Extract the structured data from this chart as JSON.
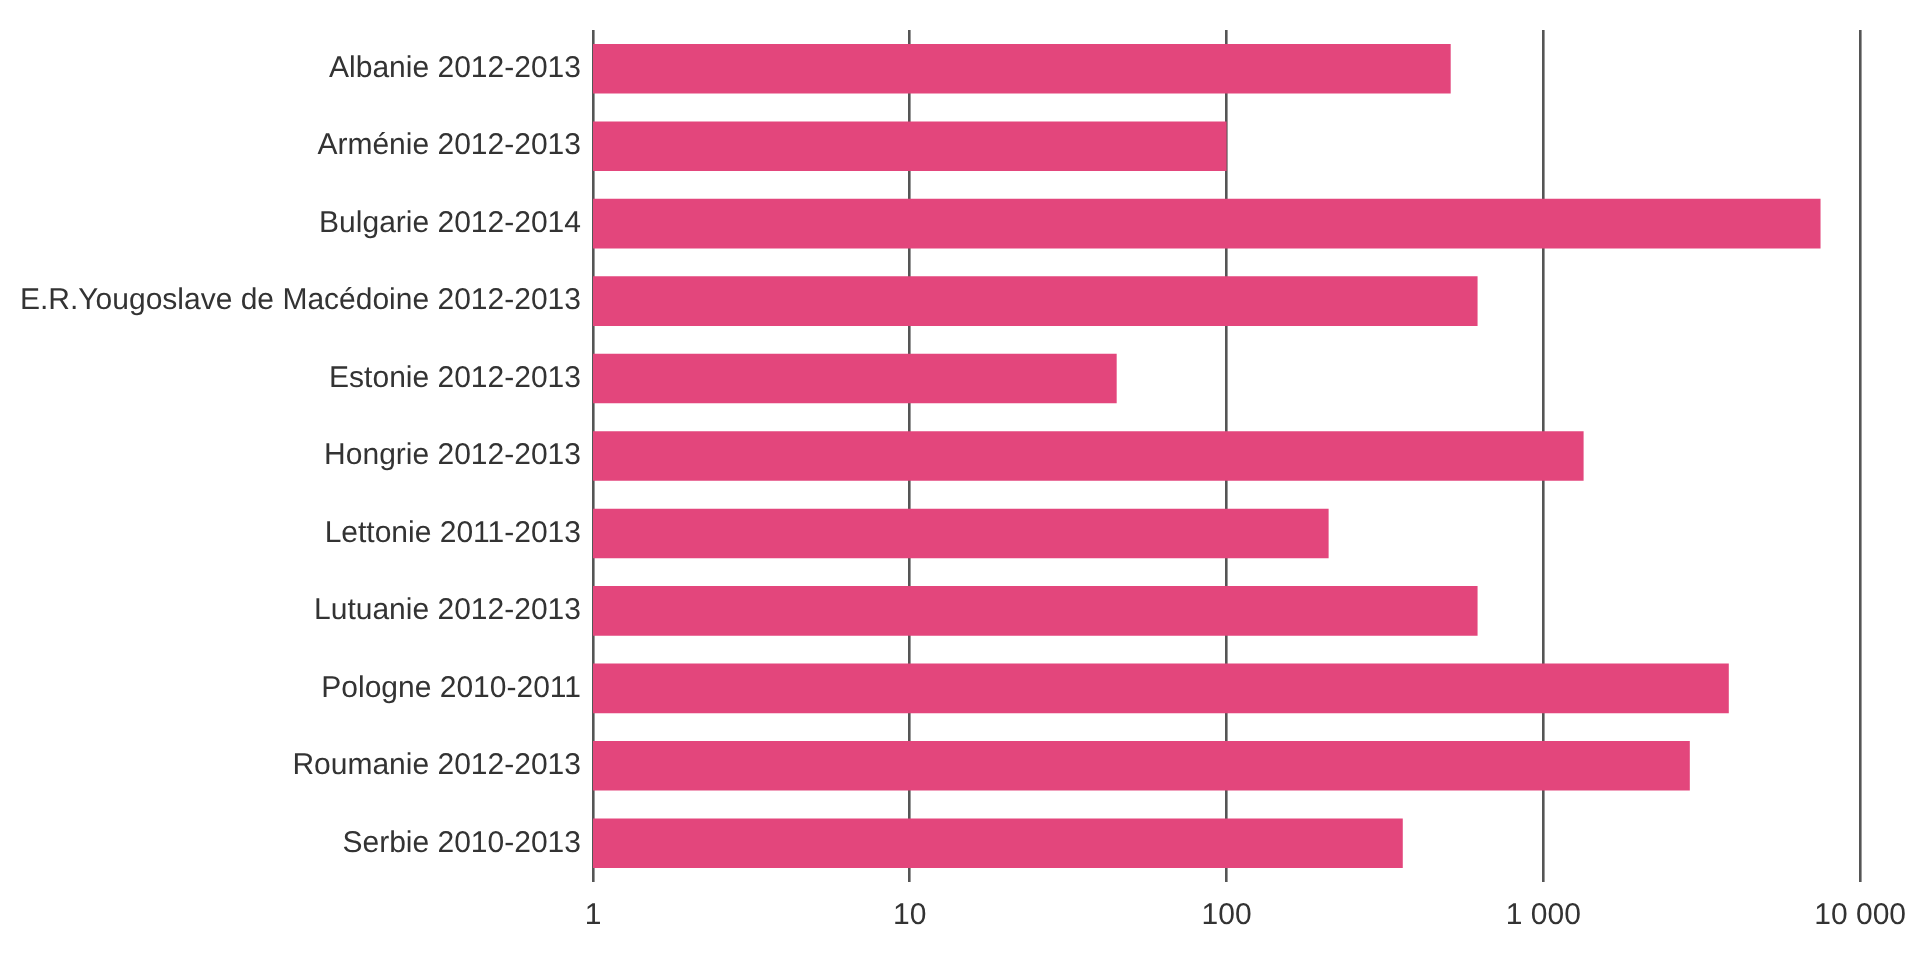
{
  "chart_data": {
    "type": "bar",
    "orientation": "horizontal",
    "log": "x",
    "categories": [
      "Albanie 2012-2013",
      "Arménie 2012-2013",
      "Bulgarie 2012-2014",
      "E.R.Yougoslave de Macédoine 2012-2013",
      "Estonie 2012-2013",
      "Hongrie 2012-2013",
      "Lettonie 2011-2013",
      "Lutuanie 2012-2013",
      "Pologne 2010-2011",
      "Roumanie 2012-2013",
      "Serbie 2010-2013"
    ],
    "values": [
      510,
      100,
      7500,
      620,
      45,
      1340,
      210,
      620,
      3850,
      2900,
      360
    ],
    "color": "#e3467c",
    "xlim": [
      1,
      10000
    ],
    "xticks": [
      1,
      10,
      100,
      {
        "value": 1000,
        "label": "1 000"
      },
      {
        "value": 10000,
        "label": "10 000"
      }
    ],
    "grid": "x"
  }
}
